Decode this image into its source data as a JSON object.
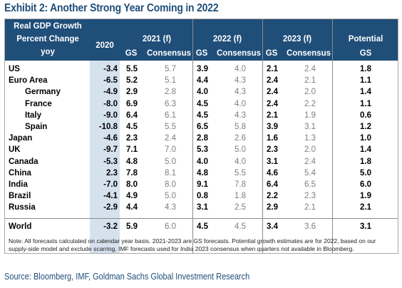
{
  "title": "Exhibit 2: Another Strong Year Coming in 2022",
  "header": {
    "row_label_line1": "Real GDP Growth",
    "row_label_line2": "Percent Change",
    "row_label_line3": "yoy",
    "col_2020": "2020",
    "group_2021": "2021 (f)",
    "group_2022": "2022 (f)",
    "group_2023": "2023 (f)",
    "potential_line1": "Potential",
    "potential_line2": "GS",
    "sub_gs": "GS",
    "sub_consensus": "Consensus"
  },
  "rows": [
    {
      "country": "US",
      "indent": false,
      "v2020": "-3.4",
      "gs21": "5.5",
      "c21": "5.7",
      "gs22": "3.9",
      "c22": "4.0",
      "gs23": "2.1",
      "c23": "2.4",
      "pot": "1.8"
    },
    {
      "country": "Euro Area",
      "indent": false,
      "v2020": "-6.5",
      "gs21": "5.2",
      "c21": "5.1",
      "gs22": "4.4",
      "c22": "4.3",
      "gs23": "2.4",
      "c23": "2.1",
      "pot": "1.1"
    },
    {
      "country": "Germany",
      "indent": true,
      "v2020": "-4.9",
      "gs21": "2.9",
      "c21": "2.8",
      "gs22": "4.0",
      "c22": "4.3",
      "gs23": "2.4",
      "c23": "2.0",
      "pot": "1.4"
    },
    {
      "country": "France",
      "indent": true,
      "v2020": "-8.0",
      "gs21": "6.9",
      "c21": "6.3",
      "gs22": "4.5",
      "c22": "4.0",
      "gs23": "2.4",
      "c23": "2.2",
      "pot": "1.1"
    },
    {
      "country": "Italy",
      "indent": true,
      "v2020": "-9.0",
      "gs21": "6.4",
      "c21": "6.1",
      "gs22": "4.5",
      "c22": "4.3",
      "gs23": "2.1",
      "c23": "1.9",
      "pot": "0.6"
    },
    {
      "country": "Spain",
      "indent": true,
      "v2020": "-10.8",
      "gs21": "4.5",
      "c21": "5.5",
      "gs22": "6.5",
      "c22": "5.8",
      "gs23": "3.9",
      "c23": "3.1",
      "pot": "1.2"
    },
    {
      "country": "Japan",
      "indent": false,
      "v2020": "-4.6",
      "gs21": "2.3",
      "c21": "2.4",
      "gs22": "2.8",
      "c22": "2.6",
      "gs23": "1.6",
      "c23": "1.3",
      "pot": "1.0"
    },
    {
      "country": "UK",
      "indent": false,
      "v2020": "-9.7",
      "gs21": "7.1",
      "c21": "7.0",
      "gs22": "5.3",
      "c22": "5.0",
      "gs23": "2.3",
      "c23": "2.0",
      "pot": "1.4"
    },
    {
      "country": "Canada",
      "indent": false,
      "v2020": "-5.3",
      "gs21": "4.8",
      "c21": "5.0",
      "gs22": "4.0",
      "c22": "4.0",
      "gs23": "3.1",
      "c23": "2.4",
      "pot": "1.8"
    },
    {
      "country": "China",
      "indent": false,
      "v2020": "2.3",
      "gs21": "7.8",
      "c21": "8.1",
      "gs22": "4.8",
      "c22": "5.5",
      "gs23": "4.6",
      "c23": "5.4",
      "pot": "5.0"
    },
    {
      "country": "India",
      "indent": false,
      "v2020": "-7.0",
      "gs21": "8.0",
      "c21": "8.0",
      "gs22": "9.1",
      "c22": "7.8",
      "gs23": "6.4",
      "c23": "6.5",
      "pot": "6.0"
    },
    {
      "country": "Brazil",
      "indent": false,
      "v2020": "-4.1",
      "gs21": "4.9",
      "c21": "5.0",
      "gs22": "0.8",
      "c22": "1.8",
      "gs23": "2.2",
      "c23": "2.3",
      "pot": "1.9"
    },
    {
      "country": "Russia",
      "indent": false,
      "v2020": "-2.9",
      "gs21": "4.4",
      "c21": "4.3",
      "gs22": "3.1",
      "c22": "2.5",
      "gs23": "2.9",
      "c23": "2.1",
      "pot": "2.1"
    }
  ],
  "world": {
    "country": "World",
    "v2020": "-3.2",
    "gs21": "5.9",
    "c21": "6.0",
    "gs22": "4.5",
    "c22": "4.5",
    "gs23": "3.4",
    "c23": "3.6",
    "pot": "3.1"
  },
  "note": "Note: All forecasts calculated on calendar year basis. 2021-2023 are GS forecasts. Potential growth estimates are for 2022, based on our supply-side model and exclude scarring. IMF forecasts used for India 2023 consensus when quarters not available in Bloomberg.",
  "source": "Source: Bloomberg, IMF, Goldman Sachs Global Investment Research",
  "colors": {
    "header_bg": "#1f4e79",
    "highlight_2020": "#d6e1ee",
    "consensus_text": "#7f7f7f",
    "title": "#1f4e79"
  }
}
